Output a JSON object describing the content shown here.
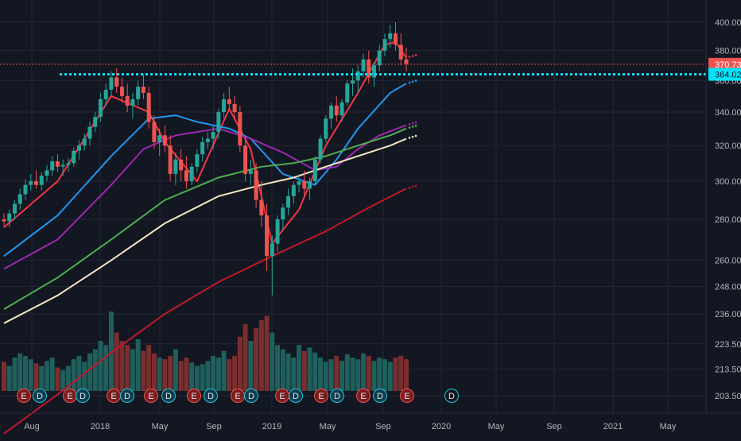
{
  "colors": {
    "background": "#131722",
    "grid": "#232736",
    "axis_text": "#b2b5be",
    "up": "#26a69a",
    "down": "#ef5350",
    "vol_up": "#1f5f5c",
    "vol_down": "#7a2e2e",
    "ema_red": "#f23645",
    "ema_blue": "#2196f3",
    "ema_purple": "#9c27b0",
    "ema_green": "#4caf50",
    "ema_cream": "#f7e7c4",
    "ema_darkred": "#c2182b",
    "price_line": "#ef5350",
    "level_line": "#00e5ff",
    "price_badge": "#ef5350",
    "level_badge": "#00e5ff"
  },
  "chart_data": {
    "type": "candlestick",
    "y_scale": "log",
    "ylim": [
      199,
      412
    ],
    "y_ticks": [
      "400.00",
      "380.00",
      "360.00",
      "340.00",
      "320.00",
      "300.00",
      "280.00",
      "260.00",
      "248.00",
      "236.00",
      "223.50",
      "213.50",
      "203.50"
    ],
    "x_ticks": [
      "Aug",
      "2018",
      "May",
      "Sep",
      "2019",
      "May",
      "Sep",
      "2020",
      "May",
      "Sep",
      "2021",
      "May"
    ],
    "current_price": {
      "label": "370.73",
      "value": 370.73
    },
    "level": {
      "label": "364.02",
      "value": 364.02
    },
    "candles_ohlc_weekly_approx": [
      [
        280,
        283,
        276,
        279
      ],
      [
        279,
        285,
        276,
        283
      ],
      [
        283,
        290,
        280,
        288
      ],
      [
        288,
        296,
        285,
        293
      ],
      [
        293,
        301,
        290,
        298
      ],
      [
        298,
        304,
        295,
        300
      ],
      [
        300,
        306,
        296,
        298
      ],
      [
        298,
        305,
        295,
        303
      ],
      [
        303,
        309,
        300,
        306
      ],
      [
        306,
        314,
        303,
        311
      ],
      [
        311,
        315,
        305,
        308
      ],
      [
        308,
        312,
        303,
        309
      ],
      [
        309,
        313,
        305,
        310
      ],
      [
        310,
        319,
        308,
        317
      ],
      [
        317,
        323,
        312,
        320
      ],
      [
        320,
        327,
        317,
        324
      ],
      [
        324,
        334,
        320,
        331
      ],
      [
        331,
        340,
        328,
        337
      ],
      [
        337,
        352,
        334,
        348
      ],
      [
        348,
        358,
        344,
        354
      ],
      [
        354,
        366,
        350,
        362
      ],
      [
        362,
        368,
        352,
        356
      ],
      [
        356,
        362,
        346,
        350
      ],
      [
        350,
        358,
        340,
        344
      ],
      [
        344,
        352,
        336,
        348
      ],
      [
        348,
        360,
        344,
        356
      ],
      [
        356,
        364,
        348,
        352
      ],
      [
        352,
        356,
        330,
        334
      ],
      [
        334,
        338,
        318,
        322
      ],
      [
        322,
        330,
        314,
        326
      ],
      [
        326,
        332,
        316,
        320
      ],
      [
        320,
        326,
        300,
        304
      ],
      [
        304,
        316,
        298,
        312
      ],
      [
        312,
        318,
        300,
        306
      ],
      [
        306,
        314,
        296,
        300
      ],
      [
        300,
        310,
        298,
        308
      ],
      [
        308,
        318,
        305,
        315
      ],
      [
        315,
        325,
        311,
        322
      ],
      [
        322,
        328,
        318,
        324
      ],
      [
        324,
        332,
        318,
        328
      ],
      [
        328,
        342,
        324,
        340
      ],
      [
        340,
        352,
        336,
        348
      ],
      [
        348,
        356,
        342,
        345
      ],
      [
        345,
        350,
        336,
        340
      ],
      [
        340,
        344,
        316,
        320
      ],
      [
        320,
        326,
        300,
        304
      ],
      [
        304,
        312,
        298,
        306
      ],
      [
        306,
        310,
        286,
        290
      ],
      [
        290,
        300,
        276,
        282
      ],
      [
        282,
        288,
        255,
        262
      ],
      [
        262,
        272,
        244,
        268
      ],
      [
        268,
        282,
        264,
        280
      ],
      [
        280,
        288,
        275,
        286
      ],
      [
        286,
        296,
        282,
        292
      ],
      [
        292,
        300,
        288,
        298
      ],
      [
        298,
        304,
        294,
        300
      ],
      [
        300,
        306,
        292,
        296
      ],
      [
        296,
        302,
        290,
        300
      ],
      [
        300,
        314,
        298,
        312
      ],
      [
        312,
        326,
        310,
        324
      ],
      [
        324,
        338,
        322,
        336
      ],
      [
        336,
        346,
        330,
        344
      ],
      [
        344,
        350,
        334,
        338
      ],
      [
        338,
        348,
        334,
        346
      ],
      [
        346,
        360,
        344,
        358
      ],
      [
        358,
        368,
        350,
        360
      ],
      [
        360,
        370,
        352,
        366
      ],
      [
        366,
        378,
        362,
        374
      ],
      [
        374,
        380,
        358,
        362
      ],
      [
        362,
        372,
        356,
        370
      ],
      [
        370,
        384,
        366,
        380
      ],
      [
        380,
        392,
        376,
        388
      ],
      [
        388,
        398,
        382,
        392
      ],
      [
        392,
        400,
        380,
        384
      ],
      [
        384,
        392,
        370,
        374
      ],
      [
        374,
        382,
        366,
        371
      ]
    ],
    "volume_relative": [
      0.35,
      0.3,
      0.4,
      0.45,
      0.42,
      0.38,
      0.33,
      0.3,
      0.36,
      0.4,
      0.28,
      0.25,
      0.3,
      0.38,
      0.42,
      0.35,
      0.45,
      0.5,
      0.6,
      0.55,
      0.95,
      0.7,
      0.6,
      0.55,
      0.5,
      0.62,
      0.48,
      0.55,
      0.45,
      0.4,
      0.38,
      0.42,
      0.5,
      0.36,
      0.4,
      0.34,
      0.3,
      0.32,
      0.36,
      0.42,
      0.4,
      0.48,
      0.38,
      0.42,
      0.65,
      0.8,
      0.6,
      0.75,
      0.85,
      0.9,
      0.7,
      0.55,
      0.5,
      0.45,
      0.4,
      0.55,
      0.48,
      0.52,
      0.46,
      0.4,
      0.35,
      0.38,
      0.42,
      0.36,
      0.44,
      0.4,
      0.38,
      0.45,
      0.42,
      0.36,
      0.4,
      0.38,
      0.35,
      0.4,
      0.42,
      0.38
    ],
    "earnings_markers": [
      "E",
      "D",
      "E",
      "D",
      "E",
      "D",
      "E",
      "D",
      "E",
      "D",
      "E",
      "D",
      "E",
      "D",
      "E",
      "D",
      "E",
      "D",
      "E",
      "D",
      "E",
      "D",
      "E",
      "E"
    ],
    "moving_averages": [
      {
        "color_key": "ema_red",
        "points": [
          [
            0,
            276
          ],
          [
            10,
            300
          ],
          [
            20,
            350
          ],
          [
            27,
            340
          ],
          [
            30,
            322
          ],
          [
            36,
            300
          ],
          [
            42,
            342
          ],
          [
            46,
            318
          ],
          [
            50,
            268
          ],
          [
            55,
            285
          ],
          [
            60,
            320
          ],
          [
            66,
            352
          ],
          [
            71,
            384
          ],
          [
            73,
            386
          ],
          [
            75,
            375
          ]
        ]
      },
      {
        "color_key": "ema_blue",
        "points": [
          [
            0,
            262
          ],
          [
            10,
            282
          ],
          [
            20,
            314
          ],
          [
            27,
            336
          ],
          [
            32,
            338
          ],
          [
            36,
            334
          ],
          [
            42,
            330
          ],
          [
            46,
            324
          ],
          [
            52,
            304
          ],
          [
            58,
            298
          ],
          [
            62,
            312
          ],
          [
            66,
            330
          ],
          [
            72,
            352
          ],
          [
            75,
            358
          ]
        ]
      },
      {
        "color_key": "ema_purple",
        "points": [
          [
            0,
            256
          ],
          [
            10,
            270
          ],
          [
            20,
            298
          ],
          [
            26,
            318
          ],
          [
            32,
            326
          ],
          [
            40,
            330
          ],
          [
            46,
            324
          ],
          [
            52,
            316
          ],
          [
            58,
            306
          ],
          [
            62,
            308
          ],
          [
            66,
            318
          ],
          [
            70,
            326
          ],
          [
            75,
            332
          ]
        ]
      },
      {
        "color_key": "ema_green",
        "points": [
          [
            0,
            238
          ],
          [
            10,
            252
          ],
          [
            20,
            270
          ],
          [
            30,
            290
          ],
          [
            40,
            302
          ],
          [
            48,
            308
          ],
          [
            54,
            310
          ],
          [
            60,
            314
          ],
          [
            66,
            320
          ],
          [
            72,
            326
          ],
          [
            75,
            330
          ]
        ]
      },
      {
        "color_key": "ema_cream",
        "points": [
          [
            0,
            232
          ],
          [
            10,
            244
          ],
          [
            20,
            260
          ],
          [
            30,
            278
          ],
          [
            40,
            292
          ],
          [
            48,
            298
          ],
          [
            54,
            302
          ],
          [
            60,
            308
          ],
          [
            66,
            314
          ],
          [
            72,
            320
          ],
          [
            75,
            324
          ]
        ]
      },
      {
        "color_key": "ema_darkred",
        "points": [
          [
            0,
            190
          ],
          [
            10,
            204
          ],
          [
            20,
            220
          ],
          [
            30,
            236
          ],
          [
            40,
            250
          ],
          [
            50,
            262
          ],
          [
            60,
            274
          ],
          [
            68,
            286
          ],
          [
            75,
            296
          ]
        ]
      }
    ]
  }
}
